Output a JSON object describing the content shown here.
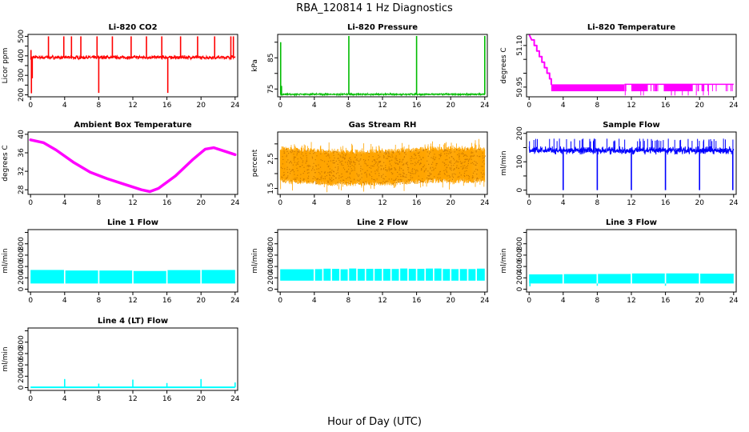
{
  "figure": {
    "title": "RBA_120814  1 Hz Diagnostics",
    "xlabel": "Hour of Day (UTC)"
  },
  "chart_data": [
    {
      "type": "line",
      "title": "Li-820 CO2",
      "ylabel": "Licor ppm",
      "color": "#ff0000",
      "xlim": [
        -0.3,
        24.3
      ],
      "ylim": [
        190,
        510
      ],
      "xticks": [
        0,
        4,
        8,
        12,
        16,
        20,
        24
      ],
      "yticks": [
        200,
        250,
        300,
        350,
        400,
        450,
        500
      ],
      "yticklabels": [
        "200",
        "",
        "300",
        "",
        "400",
        "",
        "500"
      ],
      "series": [
        {
          "baseline": 392,
          "noise": 14,
          "base_density": 1,
          "spikes": [
            {
              "x": 0.05,
              "y": 430
            },
            {
              "x": 0.1,
              "y": 208
            },
            {
              "x": 0.2,
              "y": 285
            },
            {
              "x": 2.1,
              "y": 500
            },
            {
              "x": 3.9,
              "y": 500
            },
            {
              "x": 4.8,
              "y": 500
            },
            {
              "x": 5.9,
              "y": 500
            },
            {
              "x": 7.8,
              "y": 500
            },
            {
              "x": 8.0,
              "y": 210
            },
            {
              "x": 9.6,
              "y": 500
            },
            {
              "x": 11.8,
              "y": 500
            },
            {
              "x": 13.6,
              "y": 500
            },
            {
              "x": 15.4,
              "y": 500
            },
            {
              "x": 16.1,
              "y": 210
            },
            {
              "x": 17.6,
              "y": 500
            },
            {
              "x": 19.6,
              "y": 500
            },
            {
              "x": 21.6,
              "y": 500
            },
            {
              "x": 23.5,
              "y": 500
            },
            {
              "x": 23.8,
              "y": 500
            }
          ]
        }
      ]
    },
    {
      "type": "line",
      "title": "Li-820 Pressure",
      "ylabel": "kPa",
      "color": "#00bb00",
      "xlim": [
        -0.3,
        24.3
      ],
      "ylim": [
        72.5,
        92.5
      ],
      "xticks": [
        0,
        4,
        8,
        12,
        16,
        20,
        24
      ],
      "yticks": [
        75,
        80,
        85,
        90
      ],
      "yticklabels": [
        "75",
        "",
        "85",
        ""
      ],
      "series": [
        {
          "baseline": 73.3,
          "noise": 0.35,
          "base_density": 1,
          "spikes": [
            {
              "x": 0.05,
              "y": 90
            },
            {
              "x": 0.15,
              "y": 76
            },
            {
              "x": 8.05,
              "y": 92
            },
            {
              "x": 16.0,
              "y": 92
            },
            {
              "x": 24.0,
              "y": 92
            }
          ]
        }
      ]
    },
    {
      "type": "line",
      "title": "Li-820 Temperature",
      "ylabel": "degrees C",
      "color": "#ff00ff",
      "xlim": [
        -0.3,
        24.3
      ],
      "ylim": [
        50.915,
        51.14
      ],
      "xticks": [
        0,
        4,
        8,
        12,
        16,
        20,
        24
      ],
      "yticks": [
        50.95,
        51.0,
        51.05,
        51.1
      ],
      "yticklabels": [
        "50.95",
        "",
        "",
        "51.10"
      ],
      "series": [
        {
          "points": [
            [
              0,
              51.14
            ],
            [
              0.3,
              51.12
            ],
            [
              0.6,
              51.12
            ],
            [
              0.6,
              51.1
            ],
            [
              0.9,
              51.1
            ],
            [
              0.9,
              51.08
            ],
            [
              1.2,
              51.08
            ],
            [
              1.2,
              51.06
            ],
            [
              1.5,
              51.06
            ],
            [
              1.5,
              51.04
            ],
            [
              1.8,
              51.04
            ],
            [
              1.8,
              51.02
            ],
            [
              2.1,
              51.02
            ],
            [
              2.1,
              51.0
            ],
            [
              2.4,
              51.0
            ],
            [
              2.4,
              50.98
            ],
            [
              2.6,
              50.98
            ],
            [
              2.6,
              50.96
            ]
          ],
          "band": [
            {
              "x0": 2.6,
              "x1": 11.2,
              "y0": 50.935,
              "y1": 50.96
            },
            {
              "x0": 12.0,
              "x1": 13.9,
              "y0": 50.935,
              "y1": 50.96
            },
            {
              "x0": 15.8,
              "x1": 19.2,
              "y0": 50.935,
              "y1": 50.96
            }
          ],
          "ticks": {
            "x0": 11.2,
            "x1": 24.0,
            "y_top": 50.96,
            "y_low": 50.935,
            "y_min": 50.92
          }
        }
      ]
    },
    {
      "type": "line",
      "title": "Ambient Box Temperature",
      "ylabel": "degrees C",
      "color": "#ff00ff",
      "xlim": [
        -0.3,
        24.3
      ],
      "ylim": [
        27.0,
        40.5
      ],
      "xticks": [
        0,
        4,
        8,
        12,
        16,
        20,
        24
      ],
      "yticks": [
        28,
        32,
        36,
        40
      ],
      "yticklabels": [
        "28",
        "32",
        "36",
        "40"
      ],
      "series": [
        {
          "points": [
            [
              0,
              38.8
            ],
            [
              1.5,
              38.2
            ],
            [
              3,
              36.6
            ],
            [
              5,
              34.0
            ],
            [
              7,
              31.8
            ],
            [
              9,
              30.4
            ],
            [
              11,
              29.2
            ],
            [
              13,
              28.0
            ],
            [
              14,
              27.6
            ],
            [
              15,
              28.3
            ],
            [
              17,
              31.0
            ],
            [
              19,
              34.5
            ],
            [
              20.5,
              36.8
            ],
            [
              21.5,
              37.1
            ],
            [
              23,
              36.2
            ],
            [
              24,
              35.6
            ]
          ],
          "thickness": 0.6
        }
      ]
    },
    {
      "type": "scatter",
      "title": "Gas Stream RH",
      "ylabel": "percent",
      "color": "#ffa500",
      "xlim": [
        -0.3,
        24.3
      ],
      "ylim": [
        1.3,
        3.4
      ],
      "xticks": [
        0,
        4,
        8,
        12,
        16,
        20,
        24
      ],
      "yticks": [
        1.5,
        2.0,
        2.5,
        3.0
      ],
      "yticklabels": [
        "1.5",
        "",
        "2.5",
        ""
      ],
      "series": [
        {
          "center": [
            [
              0,
              2.3
            ],
            [
              6,
              2.2
            ],
            [
              12,
              2.2
            ],
            [
              18,
              2.3
            ],
            [
              24,
              2.3
            ]
          ],
          "half_width": 0.62,
          "spike_amp": 0.25
        }
      ]
    },
    {
      "type": "line",
      "title": "Sample Flow",
      "ylabel": "ml/min",
      "color": "#0000ff",
      "xlim": [
        -0.3,
        24.3
      ],
      "ylim": [
        -15,
        205
      ],
      "xticks": [
        0,
        4,
        8,
        12,
        16,
        20,
        24
      ],
      "yticks": [
        0,
        50,
        100,
        150,
        200
      ],
      "yticklabels": [
        "0",
        "",
        "100",
        "",
        "200"
      ],
      "series": [
        {
          "baseline": 140,
          "noise": 18,
          "base_density": 1,
          "spikes": [
            {
              "x": 4.0,
              "y": 0
            },
            {
              "x": 8.0,
              "y": 0
            },
            {
              "x": 12.0,
              "y": 0
            },
            {
              "x": 16.0,
              "y": 0
            },
            {
              "x": 20.0,
              "y": 0
            },
            {
              "x": 23.9,
              "y": 0
            }
          ],
          "upper_spikes": 182
        }
      ]
    },
    {
      "type": "line",
      "title": "Line 1 Flow",
      "ylabel": "ml/min",
      "color": "#00ffff",
      "xlim": [
        -0.3,
        24.3
      ],
      "ylim": [
        -50,
        1050
      ],
      "xticks": [
        0,
        4,
        8,
        12,
        16,
        20,
        24
      ],
      "yticks": [
        0,
        200,
        400,
        600,
        800,
        1000
      ],
      "yticklabels": [
        "0",
        "200",
        "400",
        "600",
        "800",
        ""
      ],
      "series": [
        {
          "band_lo": 100,
          "band_hi": 330,
          "gaps": [
            4,
            8,
            12,
            16,
            20
          ]
        }
      ]
    },
    {
      "type": "line",
      "title": "Line 2 Flow",
      "ylabel": "ml/min",
      "color": "#00ffff",
      "xlim": [
        -0.3,
        24.3
      ],
      "ylim": [
        -50,
        1050
      ],
      "xticks": [
        0,
        4,
        8,
        12,
        16,
        20,
        24
      ],
      "yticks": [
        0,
        200,
        400,
        600,
        800,
        1000
      ],
      "yticklabels": [
        "0",
        "200",
        "400",
        "600",
        "800",
        ""
      ],
      "series": [
        {
          "band_lo": 150,
          "band_hi": 360,
          "gaps": [
            4,
            5,
            6,
            7,
            8,
            9,
            10,
            11,
            12,
            13,
            14,
            15,
            16,
            17,
            18,
            19,
            20,
            21,
            22,
            23
          ]
        }
      ]
    },
    {
      "type": "line",
      "title": "Line 3 Flow",
      "ylabel": "ml/min",
      "color": "#00ffff",
      "xlim": [
        -0.3,
        24.3
      ],
      "ylim": [
        -50,
        1050
      ],
      "xticks": [
        0,
        4,
        8,
        12,
        16,
        20,
        24
      ],
      "yticks": [
        0,
        200,
        400,
        600,
        800,
        1000
      ],
      "yticklabels": [
        "0",
        "200",
        "400",
        "600",
        "800",
        ""
      ],
      "series": [
        {
          "band_lo": 100,
          "band_hi": 270,
          "gaps": [
            4,
            8,
            12,
            16,
            20
          ],
          "dips": [
            {
              "x": 0.1,
              "y": 50
            },
            {
              "x": 8.0,
              "y": 60
            },
            {
              "x": 16.0,
              "y": 60
            }
          ]
        }
      ]
    },
    {
      "type": "line",
      "title": "Line 4 (LT) Flow",
      "ylabel": "ml/min",
      "color": "#00ffff",
      "xlim": [
        -0.3,
        24.3
      ],
      "ylim": [
        -50,
        1050
      ],
      "xticks": [
        0,
        4,
        8,
        12,
        16,
        20,
        24
      ],
      "yticks": [
        0,
        200,
        400,
        600,
        800,
        1000
      ],
      "yticklabels": [
        "0",
        "200",
        "400",
        "600",
        "800",
        ""
      ],
      "series": [
        {
          "baseline": 5,
          "spikes": [
            {
              "x": 4.0,
              "y": 150
            },
            {
              "x": 8.0,
              "y": 70
            },
            {
              "x": 12.0,
              "y": 140
            },
            {
              "x": 16.0,
              "y": 80
            },
            {
              "x": 20.0,
              "y": 150
            },
            {
              "x": 24.0,
              "y": 90
            }
          ]
        }
      ]
    }
  ]
}
